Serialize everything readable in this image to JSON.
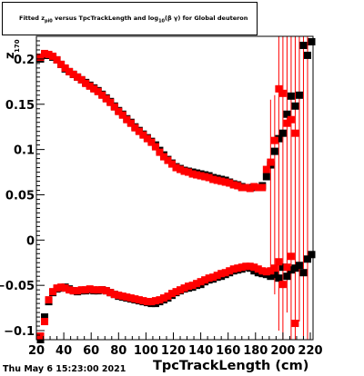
{
  "footer_text": "Thu May  6 15:23:00 2021",
  "chart_data": {
    "type": "scatter",
    "title": "Fitted z_{pi0} versus TpcTrackLength and log_{10}(β γ) for Global deuteron",
    "title_parts": {
      "a": "Fitted  z",
      "a_sub": "pi0",
      "b": "  versus  TpcTrackLength  and  log",
      "b_sub": "10",
      "c": "(β γ)  for Global deuteron"
    },
    "xlabel": "TpcTrackLength (cm)",
    "ylabel": "z",
    "ylabel_sub": "170",
    "xlim": [
      20,
      222
    ],
    "ylim": [
      -0.11,
      0.225
    ],
    "xticks": [
      20,
      40,
      60,
      80,
      100,
      120,
      140,
      160,
      180,
      200,
      220
    ],
    "xtick_labels": [
      "20",
      "40",
      "60",
      "80",
      "100",
      "120",
      "140",
      "160",
      "180",
      "200",
      "220"
    ],
    "yticks": [
      -0.1,
      -0.05,
      0,
      0.05,
      0.1,
      0.15,
      0.2
    ],
    "ytick_labels": [
      "−0.1",
      "−0.05",
      "0",
      "0.05",
      "0.1",
      "0.15",
      "0.2"
    ],
    "grid": false,
    "colors": {
      "black_series": "#000000",
      "red_series": "#ff0000"
    },
    "series": [
      {
        "marker": "square",
        "color": "#000000",
        "points": [
          [
            23,
            0.2
          ],
          [
            26,
            0.204
          ],
          [
            29,
            0.204
          ],
          [
            32,
            0.202
          ],
          [
            35,
            0.199
          ],
          [
            38,
            0.194
          ],
          [
            41,
            0.189
          ],
          [
            44,
            0.186
          ],
          [
            47,
            0.183
          ],
          [
            50,
            0.18
          ],
          [
            53,
            0.177
          ],
          [
            56,
            0.174
          ],
          [
            59,
            0.171
          ],
          [
            62,
            0.168
          ],
          [
            65,
            0.165
          ],
          [
            68,
            0.161
          ],
          [
            71,
            0.157
          ],
          [
            74,
            0.153
          ],
          [
            77,
            0.148
          ],
          [
            80,
            0.143
          ],
          [
            83,
            0.139
          ],
          [
            86,
            0.134
          ],
          [
            89,
            0.13
          ],
          [
            92,
            0.125
          ],
          [
            95,
            0.121
          ],
          [
            98,
            0.117
          ],
          [
            101,
            0.113
          ],
          [
            104,
            0.109
          ],
          [
            107,
            0.105
          ],
          [
            110,
            0.099
          ],
          [
            113,
            0.094
          ],
          [
            116,
            0.089
          ],
          [
            119,
            0.085
          ],
          [
            122,
            0.081
          ],
          [
            125,
            0.079
          ],
          [
            128,
            0.077
          ],
          [
            131,
            0.076
          ],
          [
            134,
            0.075
          ],
          [
            137,
            0.074
          ],
          [
            140,
            0.073
          ],
          [
            143,
            0.072
          ],
          [
            146,
            0.071
          ],
          [
            149,
            0.069
          ],
          [
            152,
            0.068
          ],
          [
            155,
            0.067
          ],
          [
            158,
            0.066
          ],
          [
            161,
            0.064
          ],
          [
            164,
            0.062
          ],
          [
            167,
            0.061
          ],
          [
            170,
            0.059
          ],
          [
            173,
            0.058
          ],
          [
            176,
            0.058
          ],
          [
            179,
            0.058
          ],
          [
            182,
            0.058
          ],
          [
            185,
            0.06
          ],
          [
            188,
            0.07
          ],
          [
            191,
            0.083
          ],
          [
            194,
            0.098
          ],
          [
            197,
            0.112
          ],
          [
            200,
            0.118
          ],
          [
            203,
            0.139
          ],
          [
            206,
            0.159
          ],
          [
            209,
            0.148
          ],
          [
            212,
            0.16
          ],
          [
            215,
            0.215
          ],
          [
            218,
            0.204
          ],
          [
            221,
            0.219
          ]
        ],
        "lower_points": [
          [
            23,
            -0.11
          ],
          [
            26,
            -0.085
          ],
          [
            29,
            -0.068
          ],
          [
            32,
            -0.058
          ],
          [
            35,
            -0.054
          ],
          [
            38,
            -0.053
          ],
          [
            41,
            -0.052
          ],
          [
            44,
            -0.054
          ],
          [
            47,
            -0.056
          ],
          [
            50,
            -0.057
          ],
          [
            53,
            -0.056
          ],
          [
            56,
            -0.056
          ],
          [
            59,
            -0.055
          ],
          [
            62,
            -0.056
          ],
          [
            65,
            -0.056
          ],
          [
            68,
            -0.055
          ],
          [
            71,
            -0.056
          ],
          [
            74,
            -0.058
          ],
          [
            77,
            -0.06
          ],
          [
            80,
            -0.062
          ],
          [
            83,
            -0.063
          ],
          [
            86,
            -0.064
          ],
          [
            89,
            -0.065
          ],
          [
            92,
            -0.066
          ],
          [
            95,
            -0.067
          ],
          [
            98,
            -0.068
          ],
          [
            101,
            -0.069
          ],
          [
            104,
            -0.07
          ],
          [
            107,
            -0.07
          ],
          [
            110,
            -0.068
          ],
          [
            113,
            -0.066
          ],
          [
            116,
            -0.064
          ],
          [
            119,
            -0.061
          ],
          [
            122,
            -0.058
          ],
          [
            125,
            -0.056
          ],
          [
            128,
            -0.054
          ],
          [
            131,
            -0.053
          ],
          [
            134,
            -0.052
          ],
          [
            137,
            -0.05
          ],
          [
            140,
            -0.049
          ],
          [
            143,
            -0.046
          ],
          [
            146,
            -0.044
          ],
          [
            149,
            -0.043
          ],
          [
            152,
            -0.041
          ],
          [
            155,
            -0.04
          ],
          [
            158,
            -0.038
          ],
          [
            161,
            -0.036
          ],
          [
            164,
            -0.034
          ],
          [
            167,
            -0.033
          ],
          [
            170,
            -0.032
          ],
          [
            173,
            -0.03
          ],
          [
            176,
            -0.031
          ],
          [
            179,
            -0.034
          ],
          [
            182,
            -0.036
          ],
          [
            185,
            -0.037
          ],
          [
            188,
            -0.038
          ],
          [
            191,
            -0.04
          ],
          [
            194,
            -0.038
          ],
          [
            197,
            -0.042
          ],
          [
            200,
            -0.03
          ],
          [
            203,
            -0.04
          ],
          [
            206,
            -0.033
          ],
          [
            209,
            -0.031
          ],
          [
            212,
            -0.028
          ],
          [
            215,
            -0.036
          ],
          [
            218,
            -0.021
          ],
          [
            221,
            -0.016
          ]
        ]
      },
      {
        "marker": "square",
        "color": "#ff0000",
        "points": [
          [
            23,
            0.202
          ],
          [
            26,
            0.206
          ],
          [
            29,
            0.205
          ],
          [
            32,
            0.203
          ],
          [
            35,
            0.199
          ],
          [
            38,
            0.194
          ],
          [
            41,
            0.19
          ],
          [
            44,
            0.186
          ],
          [
            47,
            0.183
          ],
          [
            50,
            0.18
          ],
          [
            53,
            0.177
          ],
          [
            56,
            0.173
          ],
          [
            59,
            0.17
          ],
          [
            62,
            0.167
          ],
          [
            65,
            0.164
          ],
          [
            68,
            0.16
          ],
          [
            71,
            0.156
          ],
          [
            74,
            0.152
          ],
          [
            77,
            0.147
          ],
          [
            80,
            0.142
          ],
          [
            83,
            0.138
          ],
          [
            86,
            0.133
          ],
          [
            89,
            0.129
          ],
          [
            92,
            0.124
          ],
          [
            95,
            0.12
          ],
          [
            98,
            0.116
          ],
          [
            101,
            0.112
          ],
          [
            104,
            0.108
          ],
          [
            107,
            0.103
          ],
          [
            110,
            0.097
          ],
          [
            113,
            0.092
          ],
          [
            116,
            0.088
          ],
          [
            119,
            0.084
          ],
          [
            122,
            0.08
          ],
          [
            125,
            0.078
          ],
          [
            128,
            0.076
          ],
          [
            131,
            0.075
          ],
          [
            134,
            0.073
          ],
          [
            137,
            0.072
          ],
          [
            140,
            0.071
          ],
          [
            143,
            0.07
          ],
          [
            146,
            0.069
          ],
          [
            149,
            0.067
          ],
          [
            152,
            0.066
          ],
          [
            155,
            0.065
          ],
          [
            158,
            0.064
          ],
          [
            161,
            0.063
          ],
          [
            164,
            0.061
          ],
          [
            167,
            0.06
          ],
          [
            170,
            0.058
          ],
          [
            173,
            0.058
          ],
          [
            176,
            0.057
          ],
          [
            179,
            0.059
          ],
          [
            182,
            0.058
          ],
          [
            185,
            0.058
          ],
          [
            188,
            0.078
          ],
          [
            191,
            0.086
          ],
          [
            194,
            0.11
          ],
          [
            197,
            0.167
          ],
          [
            200,
            0.162
          ],
          [
            203,
            0.129
          ],
          [
            206,
            0.133
          ],
          [
            209,
            0.118
          ]
        ],
        "lower_points": [
          [
            23,
            -0.106
          ],
          [
            26,
            -0.09
          ],
          [
            29,
            -0.066
          ],
          [
            32,
            -0.057
          ],
          [
            35,
            -0.053
          ],
          [
            38,
            -0.052
          ],
          [
            41,
            -0.053
          ],
          [
            44,
            -0.055
          ],
          [
            47,
            -0.056
          ],
          [
            50,
            -0.056
          ],
          [
            53,
            -0.055
          ],
          [
            56,
            -0.055
          ],
          [
            59,
            -0.054
          ],
          [
            62,
            -0.055
          ],
          [
            65,
            -0.055
          ],
          [
            68,
            -0.055
          ],
          [
            71,
            -0.056
          ],
          [
            74,
            -0.058
          ],
          [
            77,
            -0.06
          ],
          [
            80,
            -0.061
          ],
          [
            83,
            -0.062
          ],
          [
            86,
            -0.063
          ],
          [
            89,
            -0.064
          ],
          [
            92,
            -0.065
          ],
          [
            95,
            -0.066
          ],
          [
            98,
            -0.067
          ],
          [
            101,
            -0.068
          ],
          [
            104,
            -0.068
          ],
          [
            107,
            -0.067
          ],
          [
            110,
            -0.066
          ],
          [
            113,
            -0.064
          ],
          [
            116,
            -0.062
          ],
          [
            119,
            -0.059
          ],
          [
            122,
            -0.057
          ],
          [
            125,
            -0.055
          ],
          [
            128,
            -0.053
          ],
          [
            131,
            -0.051
          ],
          [
            134,
            -0.05
          ],
          [
            137,
            -0.048
          ],
          [
            140,
            -0.046
          ],
          [
            143,
            -0.044
          ],
          [
            146,
            -0.042
          ],
          [
            149,
            -0.041
          ],
          [
            152,
            -0.039
          ],
          [
            155,
            -0.037
          ],
          [
            158,
            -0.036
          ],
          [
            161,
            -0.034
          ],
          [
            164,
            -0.032
          ],
          [
            167,
            -0.031
          ],
          [
            170,
            -0.03
          ],
          [
            173,
            -0.029
          ],
          [
            176,
            -0.029
          ],
          [
            179,
            -0.03
          ],
          [
            182,
            -0.032
          ],
          [
            185,
            -0.034
          ],
          [
            188,
            -0.035
          ],
          [
            191,
            -0.034
          ],
          [
            194,
            -0.031
          ],
          [
            197,
            -0.024
          ],
          [
            200,
            -0.049
          ],
          [
            203,
            -0.03
          ],
          [
            206,
            -0.018
          ],
          [
            209,
            -0.092
          ]
        ],
        "error_bars": [
          {
            "x": 191,
            "lo": -0.04,
            "hi": 0.155
          },
          {
            "x": 194,
            "lo": -0.06,
            "hi": 0.16
          },
          {
            "x": 197,
            "lo": -0.1,
            "hi": 0.225
          },
          {
            "x": 200,
            "lo": -0.11,
            "hi": 0.225
          },
          {
            "x": 203,
            "lo": -0.08,
            "hi": 0.225
          },
          {
            "x": 206,
            "lo": -0.11,
            "hi": 0.225
          },
          {
            "x": 209,
            "lo": -0.11,
            "hi": 0.225
          },
          {
            "x": 212,
            "lo": -0.09,
            "hi": 0.225
          },
          {
            "x": 215,
            "lo": -0.11,
            "hi": 0.225
          },
          {
            "x": 218,
            "lo": -0.11,
            "hi": 0.225
          }
        ]
      }
    ]
  }
}
